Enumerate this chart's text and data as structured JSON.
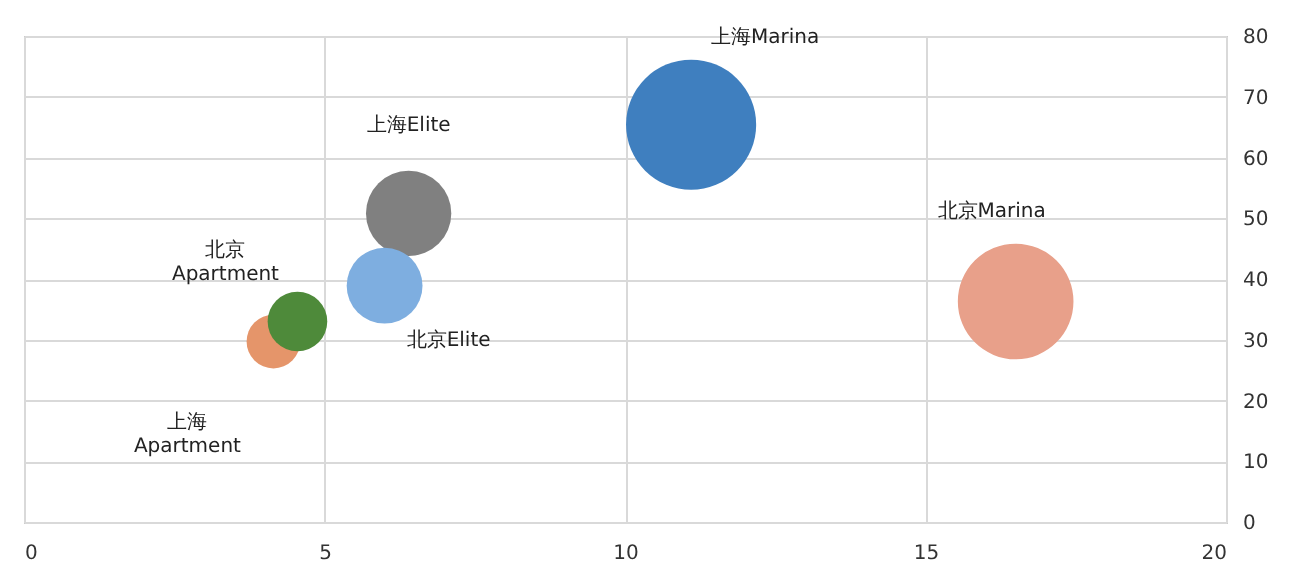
{
  "chart_data": {
    "type": "bubble",
    "xlim": [
      0,
      20
    ],
    "xticks": [
      0,
      5,
      10,
      15,
      20
    ],
    "ylim": [
      0,
      80
    ],
    "yticks": [
      0,
      10,
      20,
      30,
      40,
      50,
      60,
      70,
      80
    ],
    "grid": true,
    "legend": false,
    "series": [
      {
        "name": "上海Marina",
        "color": "#3f7fbf",
        "x": [
          11.1
        ],
        "values": [
          65.4
        ],
        "sizes": [
          1
        ]
      },
      {
        "name": "北京Marina",
        "color": "#e8a08a",
        "x": [
          16.5
        ],
        "values": [
          36.3
        ],
        "sizes": [
          0.79
        ]
      },
      {
        "name": "上海Elite",
        "color": "#808080",
        "x": [
          6.4
        ],
        "values": [
          50.8
        ],
        "sizes": [
          0.43
        ]
      },
      {
        "name": "北京Elite",
        "color": "#7eaee0",
        "x": [
          6.0
        ],
        "values": [
          38.9
        ],
        "sizes": [
          0.34
        ]
      },
      {
        "name": "上海Apartment",
        "color": "#e5956a",
        "x": [
          4.15
        ],
        "values": [
          29.7
        ],
        "sizes": [
          0.17
        ]
      },
      {
        "name": "北京Apartment",
        "color": "#4e8a3a",
        "x": [
          4.55
        ],
        "values": [
          33.0
        ],
        "sizes": [
          0.21
        ]
      }
    ]
  }
}
